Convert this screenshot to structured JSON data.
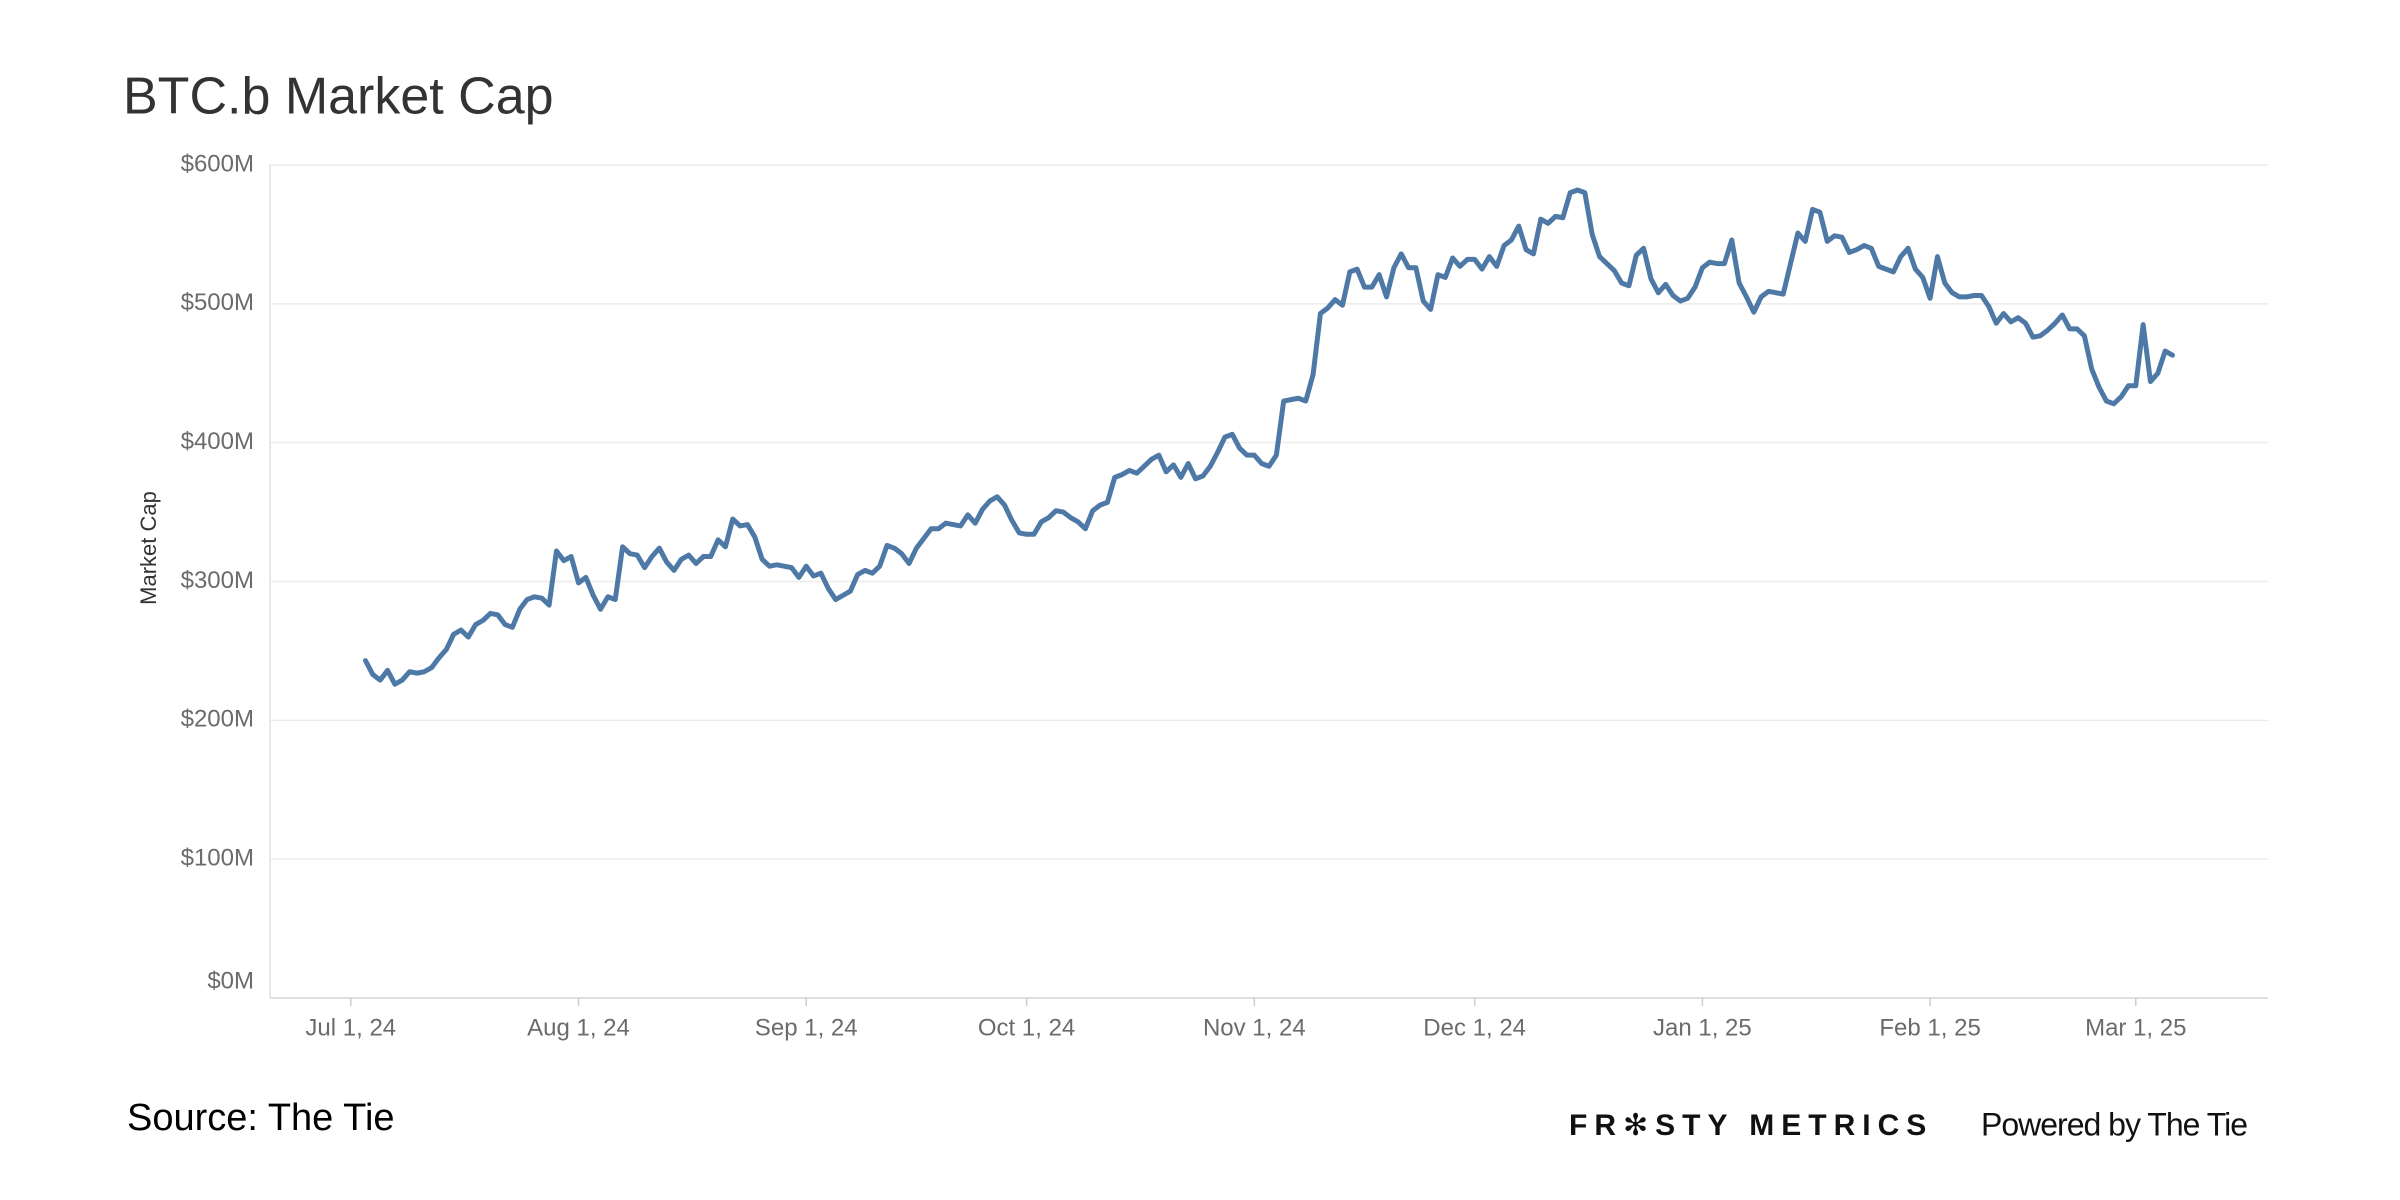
{
  "chart_data": {
    "type": "line",
    "title": "BTC.b Market Cap",
    "y_label": "Market Cap",
    "source": "Source: The Tie",
    "branding": [
      "FR✻STY METRICS",
      "Powered by The Tie"
    ],
    "x": [
      "2024-07-03",
      "2024-07-04",
      "2024-07-05",
      "2024-07-06",
      "2024-07-07",
      "2024-07-08",
      "2024-07-09",
      "2024-07-10",
      "2024-07-11",
      "2024-07-12",
      "2024-07-13",
      "2024-07-14",
      "2024-07-15",
      "2024-07-16",
      "2024-07-17",
      "2024-07-18",
      "2024-07-19",
      "2024-07-20",
      "2024-07-21",
      "2024-07-22",
      "2024-07-23",
      "2024-07-24",
      "2024-07-25",
      "2024-07-26",
      "2024-07-27",
      "2024-07-28",
      "2024-07-29",
      "2024-07-30",
      "2024-07-31",
      "2024-08-01",
      "2024-08-02",
      "2024-08-03",
      "2024-08-04",
      "2024-08-05",
      "2024-08-06",
      "2024-08-07",
      "2024-08-08",
      "2024-08-09",
      "2024-08-10",
      "2024-08-11",
      "2024-08-12",
      "2024-08-13",
      "2024-08-14",
      "2024-08-15",
      "2024-08-16",
      "2024-08-17",
      "2024-08-18",
      "2024-08-19",
      "2024-08-20",
      "2024-08-21",
      "2024-08-22",
      "2024-08-23",
      "2024-08-24",
      "2024-08-25",
      "2024-08-26",
      "2024-08-27",
      "2024-08-28",
      "2024-08-29",
      "2024-08-30",
      "2024-08-31",
      "2024-09-01",
      "2024-09-02",
      "2024-09-03",
      "2024-09-04",
      "2024-09-05",
      "2024-09-06",
      "2024-09-07",
      "2024-09-08",
      "2024-09-09",
      "2024-09-10",
      "2024-09-11",
      "2024-09-12",
      "2024-09-13",
      "2024-09-14",
      "2024-09-15",
      "2024-09-16",
      "2024-09-17",
      "2024-09-18",
      "2024-09-19",
      "2024-09-20",
      "2024-09-21",
      "2024-09-22",
      "2024-09-23",
      "2024-09-24",
      "2024-09-25",
      "2024-09-26",
      "2024-09-27",
      "2024-09-28",
      "2024-09-29",
      "2024-09-30",
      "2024-10-01",
      "2024-10-02",
      "2024-10-03",
      "2024-10-04",
      "2024-10-05",
      "2024-10-06",
      "2024-10-07",
      "2024-10-08",
      "2024-10-09",
      "2024-10-10",
      "2024-10-11",
      "2024-10-12",
      "2024-10-13",
      "2024-10-14",
      "2024-10-15",
      "2024-10-16",
      "2024-10-17",
      "2024-10-18",
      "2024-10-19",
      "2024-10-20",
      "2024-10-21",
      "2024-10-22",
      "2024-10-23",
      "2024-10-24",
      "2024-10-25",
      "2024-10-26",
      "2024-10-27",
      "2024-10-28",
      "2024-10-29",
      "2024-10-30",
      "2024-10-31",
      "2024-11-01",
      "2024-11-02",
      "2024-11-03",
      "2024-11-04",
      "2024-11-05",
      "2024-11-06",
      "2024-11-07",
      "2024-11-08",
      "2024-11-09",
      "2024-11-10",
      "2024-11-11",
      "2024-11-12",
      "2024-11-13",
      "2024-11-14",
      "2024-11-15",
      "2024-11-16",
      "2024-11-17",
      "2024-11-18",
      "2024-11-19",
      "2024-11-20",
      "2024-11-21",
      "2024-11-22",
      "2024-11-23",
      "2024-11-24",
      "2024-11-25",
      "2024-11-26",
      "2024-11-27",
      "2024-11-28",
      "2024-11-29",
      "2024-11-30",
      "2024-12-01",
      "2024-12-02",
      "2024-12-03",
      "2024-12-04",
      "2024-12-05",
      "2024-12-06",
      "2024-12-07",
      "2024-12-08",
      "2024-12-09",
      "2024-12-10",
      "2024-12-11",
      "2024-12-12",
      "2024-12-13",
      "2024-12-14",
      "2024-12-15",
      "2024-12-16",
      "2024-12-17",
      "2024-12-18",
      "2024-12-19",
      "2024-12-20",
      "2024-12-21",
      "2024-12-22",
      "2024-12-23",
      "2024-12-24",
      "2024-12-25",
      "2024-12-26",
      "2024-12-27",
      "2024-12-28",
      "2024-12-29",
      "2024-12-30",
      "2024-12-31",
      "2025-01-01",
      "2025-01-02",
      "2025-01-03",
      "2025-01-04",
      "2025-01-05",
      "2025-01-06",
      "2025-01-07",
      "2025-01-08",
      "2025-01-09",
      "2025-01-10",
      "2025-01-11",
      "2025-01-12",
      "2025-01-13",
      "2025-01-14",
      "2025-01-15",
      "2025-01-16",
      "2025-01-17",
      "2025-01-18",
      "2025-01-19",
      "2025-01-20",
      "2025-01-21",
      "2025-01-22",
      "2025-01-23",
      "2025-01-24",
      "2025-01-25",
      "2025-01-26",
      "2025-01-27",
      "2025-01-28",
      "2025-01-29",
      "2025-01-30",
      "2025-01-31",
      "2025-02-01",
      "2025-02-02",
      "2025-02-03",
      "2025-02-04",
      "2025-02-05",
      "2025-02-06",
      "2025-02-07",
      "2025-02-08",
      "2025-02-09",
      "2025-02-10",
      "2025-02-11",
      "2025-02-12",
      "2025-02-13",
      "2025-02-14",
      "2025-02-15",
      "2025-02-16",
      "2025-02-17",
      "2025-02-18",
      "2025-02-19",
      "2025-02-20",
      "2025-02-21",
      "2025-02-22",
      "2025-02-23",
      "2025-02-24",
      "2025-02-25",
      "2025-02-26",
      "2025-02-27",
      "2025-02-28",
      "2025-03-01",
      "2025-03-02",
      "2025-03-03",
      "2025-03-04",
      "2025-03-05",
      "2025-03-06"
    ],
    "series": [
      {
        "name": "Market Cap",
        "color": "#4e79a7",
        "values": [
          243000000.0,
          233000000.0,
          229000000.0,
          236000000.0,
          226000000.0,
          229000000.0,
          235000000.0,
          234000000.0,
          235000000.0,
          238000000.0,
          245000000.0,
          251000000.0,
          262000000.0,
          265000000.0,
          260000000.0,
          269000000.0,
          272000000.0,
          277000000.0,
          276000000.0,
          269000000.0,
          267000000.0,
          280000000.0,
          287000000.0,
          289000000.0,
          288000000.0,
          283000000.0,
          322000000.0,
          315000000.0,
          318000000.0,
          299000000.0,
          303000000.0,
          290000000.0,
          280000000.0,
          289000000.0,
          287000000.0,
          325000000.0,
          320000000.0,
          319000000.0,
          310000000.0,
          318000000.0,
          324000000.0,
          314000000.0,
          308000000.0,
          316000000.0,
          319000000.0,
          313000000.0,
          318000000.0,
          318000000.0,
          330000000.0,
          325000000.0,
          345000000.0,
          340000000.0,
          341000000.0,
          332000000.0,
          316000000.0,
          311000000.0,
          312000000.0,
          311000000.0,
          310000000.0,
          303000000.0,
          311000000.0,
          304000000.0,
          306000000.0,
          295000000.0,
          287000000.0,
          290000000.0,
          293000000.0,
          305000000.0,
          308000000.0,
          306000000.0,
          311000000.0,
          326000000.0,
          324000000.0,
          320000000.0,
          313000000.0,
          324000000.0,
          331000000.0,
          338000000.0,
          338000000.0,
          342000000.0,
          341000000.0,
          340000000.0,
          348000000.0,
          342000000.0,
          352000000.0,
          358000000.0,
          361000000.0,
          355000000.0,
          344000000.0,
          335000000.0,
          334000000.0,
          334000000.0,
          343000000.0,
          346000000.0,
          351000000.0,
          350000000.0,
          346000000.0,
          343000000.0,
          338000000.0,
          351000000.0,
          355000000.0,
          357000000.0,
          375000000.0,
          377000000.0,
          380000000.0,
          378000000.0,
          383000000.0,
          388000000.0,
          391000000.0,
          379000000.0,
          384000000.0,
          375000000.0,
          385000000.0,
          374000000.0,
          376000000.0,
          383000000.0,
          393000000.0,
          404000000.0,
          406000000.0,
          396000000.0,
          391000000.0,
          391000000.0,
          385000000.0,
          383000000.0,
          391000000.0,
          430000000.0,
          431000000.0,
          432000000.0,
          430000000.0,
          449000000.0,
          493000000.0,
          497000000.0,
          503000000.0,
          499000000.0,
          523000000.0,
          525000000.0,
          512000000.0,
          512000000.0,
          521000000.0,
          505000000.0,
          526000000.0,
          536000000.0,
          526000000.0,
          526000000.0,
          502000000.0,
          496000000.0,
          521000000.0,
          519000000.0,
          533000000.0,
          527000000.0,
          532000000.0,
          532000000.0,
          525000000.0,
          534000000.0,
          527000000.0,
          542000000.0,
          546000000.0,
          556000000.0,
          539000000.0,
          536000000.0,
          561000000.0,
          558000000.0,
          563000000.0,
          562000000.0,
          580000000.0,
          582000000.0,
          580000000.0,
          550000000.0,
          534000000.0,
          529000000.0,
          524000000.0,
          515000000.0,
          513000000.0,
          535000000.0,
          540000000.0,
          518000000.0,
          508000000.0,
          514000000.0,
          506000000.0,
          502000000.0,
          504000000.0,
          512000000.0,
          526000000.0,
          530000000.0,
          529000000.0,
          529000000.0,
          546000000.0,
          515000000.0,
          505000000.0,
          494000000.0,
          505000000.0,
          509000000.0,
          508000000.0,
          507000000.0,
          529000000.0,
          551000000.0,
          545000000.0,
          568000000.0,
          566000000.0,
          545000000.0,
          549000000.0,
          548000000.0,
          537000000.0,
          539000000.0,
          542000000.0,
          540000000.0,
          527000000.0,
          525000000.0,
          523000000.0,
          534000000.0,
          540000000.0,
          525000000.0,
          519000000.0,
          504000000.0,
          534000000.0,
          515000000.0,
          508000000.0,
          505000000.0,
          505000000.0,
          506000000.0,
          506000000.0,
          498000000.0,
          486000000.0,
          493000000.0,
          487000000.0,
          490000000.0,
          486000000.0,
          476000000.0,
          477000000.0,
          481000000.0,
          486000000.0,
          492000000.0,
          482000000.0,
          482000000.0,
          477000000.0,
          453000000.0,
          440000000.0,
          430000000.0,
          428000000.0,
          433000000.0,
          441000000.0,
          441000000.0,
          485000000.0,
          444000000.0,
          450000000.0,
          466000000.0,
          463000000.0
        ]
      }
    ],
    "xlim": [
      "2024-06-20",
      "2025-03-19"
    ],
    "xticks": [
      {
        "value": "2024-07-01",
        "label": "Jul 1, 24"
      },
      {
        "value": "2024-08-01",
        "label": "Aug 1, 24"
      },
      {
        "value": "2024-09-01",
        "label": "Sep 1, 24"
      },
      {
        "value": "2024-10-01",
        "label": "Oct 1, 24"
      },
      {
        "value": "2024-11-01",
        "label": "Nov 1, 24"
      },
      {
        "value": "2024-12-01",
        "label": "Dec 1, 24"
      },
      {
        "value": "2025-01-01",
        "label": "Jan 1, 25"
      },
      {
        "value": "2025-02-01",
        "label": "Feb 1, 25"
      },
      {
        "value": "2025-03-01",
        "label": "Mar 1, 25"
      }
    ],
    "ylim": [
      0,
      600000000
    ],
    "yticks": [
      {
        "value": 0,
        "label": "$0M"
      },
      {
        "value": 100000000,
        "label": "$100M"
      },
      {
        "value": 200000000,
        "label": "$200M"
      },
      {
        "value": 300000000,
        "label": "$300M"
      },
      {
        "value": 400000000,
        "label": "$400M"
      },
      {
        "value": 500000000,
        "label": "$500M"
      },
      {
        "value": 600000000,
        "label": "$600M"
      }
    ],
    "grid": true
  }
}
